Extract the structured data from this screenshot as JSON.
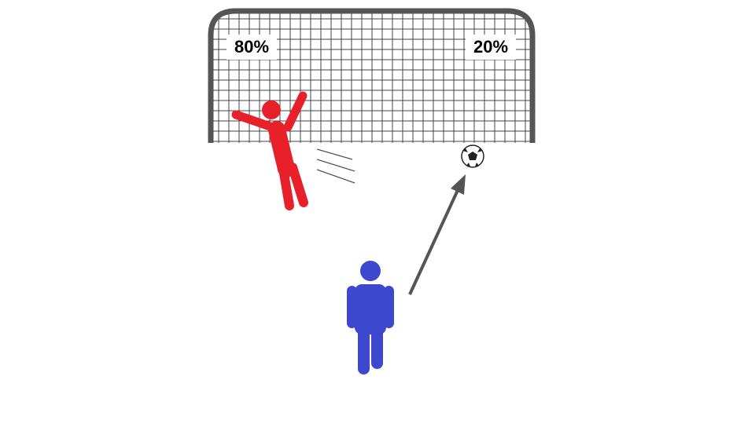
{
  "goal": {
    "left_label": "80%",
    "right_label": "20%"
  }
}
